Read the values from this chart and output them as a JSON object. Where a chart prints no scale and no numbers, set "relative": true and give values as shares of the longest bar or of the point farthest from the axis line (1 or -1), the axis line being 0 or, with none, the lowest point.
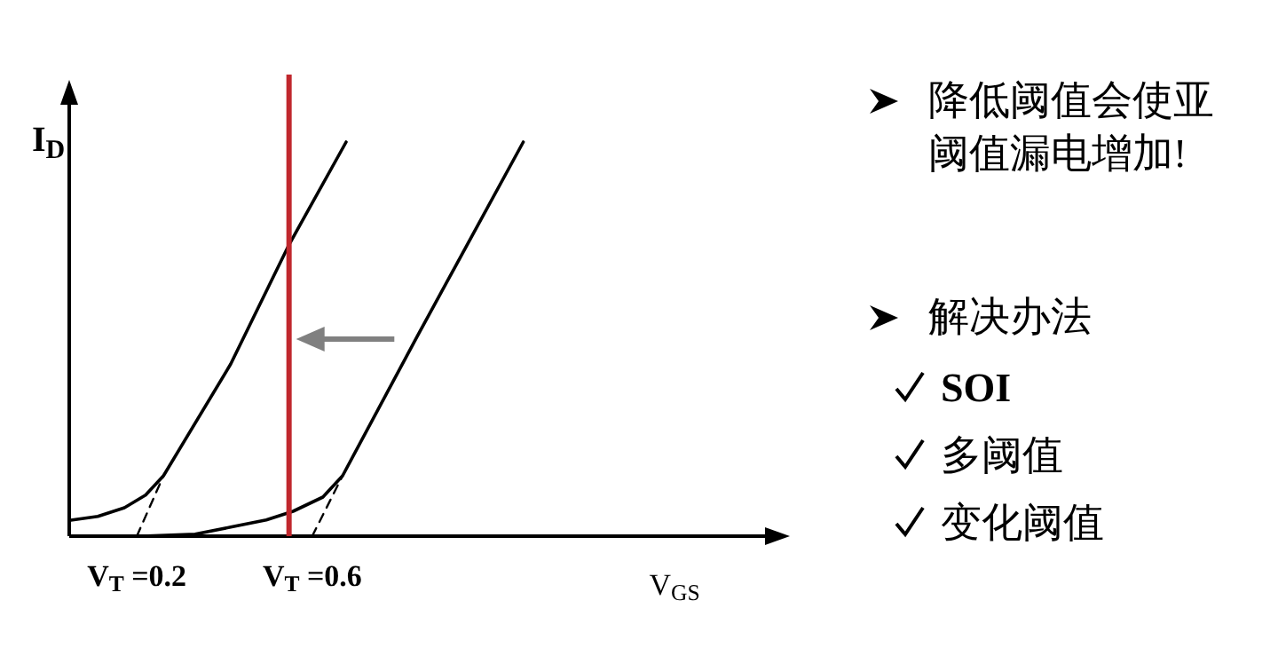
{
  "chart_data": {
    "type": "line",
    "relative": true,
    "xlabel": "V$_{GS}$",
    "ylabel": "I$_{D}$",
    "xlim": [
      0.046,
      1.64
    ],
    "xticks": [
      {
        "value": 0.2,
        "label": "V$_{T}$ =0.2"
      },
      {
        "value": 0.6,
        "label": "V$_{T}$ =0.6"
      }
    ],
    "series": [
      {
        "color": "#000000",
        "x": [
          0.046,
          0.111,
          0.172,
          0.22,
          0.261,
          0.414,
          0.547,
          0.677
        ],
        "values": [
          0.04,
          0.05,
          0.072,
          0.104,
          0.153,
          0.437,
          0.739,
          1.0
        ]
      },
      {
        "color": "#000000",
        "x": [
          0.212,
          0.333,
          0.414,
          0.495,
          0.556,
          0.624,
          0.669,
          0.838,
          1.081
        ],
        "values": [
          0,
          0.005,
          0.023,
          0.041,
          0.063,
          0.099,
          0.153,
          0.505,
          1.0
        ]
      },
      {
        "color": "#000000",
        "line_style": "dashed",
        "x": [
          0.2,
          0.261
        ],
        "values": [
          0,
          0.153
        ]
      },
      {
        "color": "#000000",
        "line_style": "dashed",
        "x": [
          0.6,
          0.669
        ],
        "values": [
          0,
          0.153
        ]
      }
    ],
    "ref_lines": [
      {
        "axis": "x",
        "value": 0.547,
        "color": "#c0272d"
      }
    ],
    "annotations": [
      "降低阈值会使亚阈值漏电增加!",
      "解决办法",
      "SOI",
      "多阈值",
      "变化阈值"
    ]
  }
}
